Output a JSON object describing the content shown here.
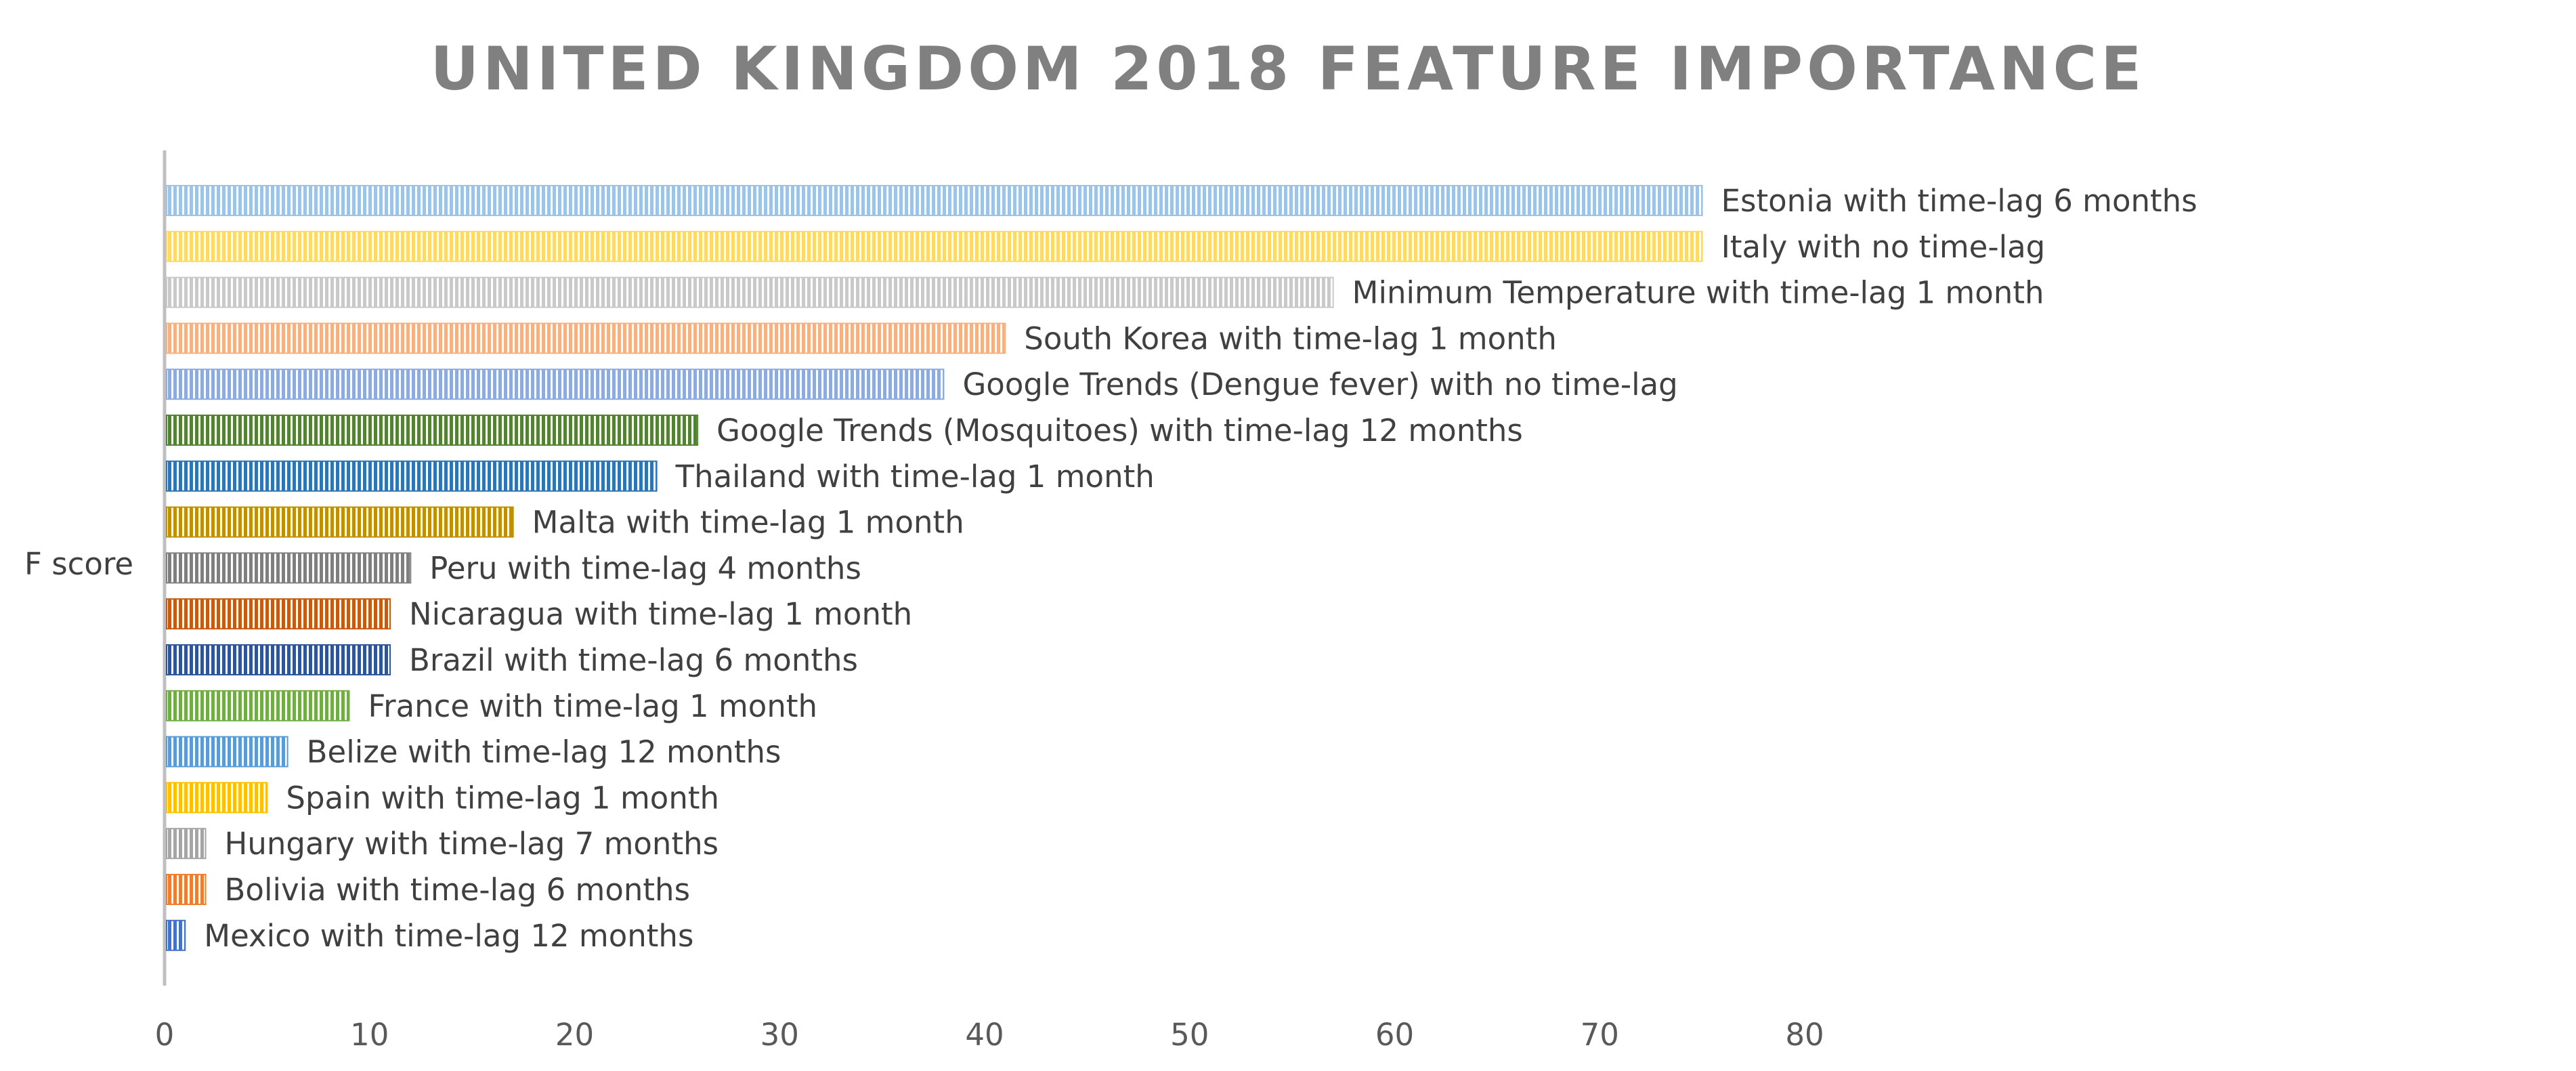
{
  "chart_data": {
    "type": "bar",
    "orientation": "horizontal",
    "title": "UNITED KINGDOM 2018 FEATURE IMPORTANCE",
    "ylabel": "F score",
    "xlabel": "",
    "xlim": [
      0,
      80
    ],
    "xticks": [
      0,
      10,
      20,
      30,
      40,
      50,
      60,
      70,
      80
    ],
    "grid": false,
    "bar_fill": "vertical stripes",
    "categories": [
      "Estonia with time-lag 6 months",
      "Italy with no time-lag",
      "Minimum Temperature with time-lag 1 month",
      "South Korea with time-lag 1 month",
      "Google Trends (Dengue fever) with no time-lag",
      "Google Trends (Mosquitoes) with time-lag 12 months",
      "Thailand with time-lag 1 month",
      "Malta with time-lag 1 month",
      "Peru with time-lag 4 months",
      "Nicaragua with time-lag 1 month",
      "Brazil with time-lag 6 months",
      "France with time-lag 1 month",
      "Belize with time-lag 12 months",
      "Spain with time-lag 1 month",
      "Hungary with time-lag 7 months",
      "Bolivia with time-lag 6 months",
      "Mexico with time-lag 12 months"
    ],
    "values": [
      75,
      75,
      57,
      41,
      38,
      26,
      24,
      17,
      12,
      11,
      11,
      9,
      6,
      5,
      2,
      2,
      1
    ],
    "colors": [
      "#9DC3E6",
      "#FFD966",
      "#C9C9C9",
      "#F4B183",
      "#8FAADC",
      "#548235",
      "#2E75B6",
      "#BF9000",
      "#7F7F7F",
      "#C55A11",
      "#2F5597",
      "#70AD47",
      "#5B9BD5",
      "#FFC000",
      "#A5A5A5",
      "#ED7D31",
      "#4472C4"
    ]
  }
}
